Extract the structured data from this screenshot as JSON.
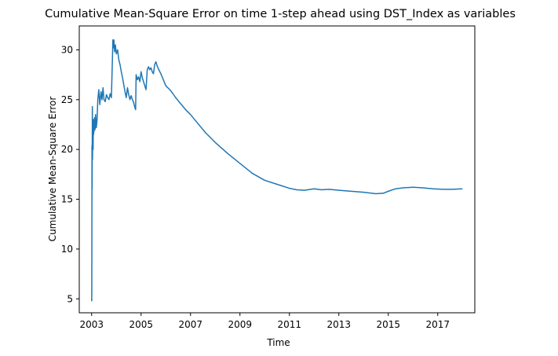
{
  "chart_data": {
    "type": "line",
    "title": "Cumulative Mean-Square Error on time 1-step ahead using DST_Index as variables",
    "xlabel": "Time",
    "ylabel": "Cumulative Mean-Square Error",
    "xlim": [
      2002.5,
      2018.5
    ],
    "ylim": [
      3.6,
      32.4
    ],
    "xticks": [
      2003,
      2005,
      2007,
      2009,
      2011,
      2013,
      2015,
      2017
    ],
    "yticks": [
      5,
      10,
      15,
      20,
      25,
      30
    ],
    "grid": false,
    "legend": "none",
    "series": [
      {
        "color": "#1f77b4",
        "x": [
          2003.0,
          2003.005,
          2003.01,
          2003.015,
          2003.02,
          2003.03,
          2003.035,
          2003.045,
          2003.06,
          2003.07,
          2003.08,
          2003.09,
          2003.1,
          2003.12,
          2003.14,
          2003.16,
          2003.19,
          2003.22,
          2003.25,
          2003.29,
          2003.33,
          2003.38,
          2003.42,
          2003.46,
          2003.5,
          2003.55,
          2003.6,
          2003.65,
          2003.7,
          2003.75,
          2003.8,
          2003.84,
          2003.86,
          2003.88,
          2003.9,
          2003.93,
          2003.96,
          2004.0,
          2004.05,
          2004.1,
          2004.15,
          2004.2,
          2004.25,
          2004.3,
          2004.35,
          2004.4,
          2004.45,
          2004.5,
          2004.55,
          2004.6,
          2004.65,
          2004.7,
          2004.75,
          2004.78,
          2004.8,
          2004.85,
          2004.9,
          2004.95,
          2005.0,
          2005.05,
          2005.1,
          2005.15,
          2005.2,
          2005.25,
          2005.3,
          2005.35,
          2005.4,
          2005.45,
          2005.5,
          2005.55,
          2005.6,
          2005.65,
          2005.7,
          2005.8,
          2005.9,
          2006.0,
          2006.2,
          2006.4,
          2006.6,
          2006.8,
          2007.0,
          2007.3,
          2007.6,
          2008.0,
          2008.5,
          2009.0,
          2009.5,
          2010.0,
          2010.5,
          2011.0,
          2011.3,
          2011.6,
          2012.0,
          2012.3,
          2012.6,
          2013.0,
          2013.5,
          2014.0,
          2014.5,
          2014.8,
          2015.0,
          2015.3,
          2015.6,
          2016.0,
          2016.4,
          2016.8,
          2017.2,
          2017.6,
          2018.0
        ],
        "y": [
          5.0,
          4.8,
          10.3,
          20.4,
          16.0,
          24.3,
          19.0,
          22.0,
          20.0,
          23.0,
          21.5,
          22.8,
          21.8,
          23.2,
          22.0,
          23.5,
          22.2,
          23.0,
          25.0,
          26.0,
          24.5,
          25.8,
          25.0,
          26.2,
          25.0,
          24.8,
          25.5,
          25.2,
          25.0,
          25.6,
          25.2,
          29.0,
          31.0,
          30.2,
          31.0,
          29.8,
          30.5,
          29.6,
          30.0,
          29.0,
          28.5,
          27.8,
          27.2,
          26.5,
          25.8,
          25.2,
          26.2,
          25.5,
          25.0,
          25.4,
          25.0,
          24.7,
          24.2,
          24.0,
          27.5,
          27.0,
          27.3,
          26.8,
          27.8,
          27.2,
          26.8,
          26.4,
          26.0,
          28.0,
          28.3,
          28.0,
          28.2,
          27.8,
          27.6,
          28.5,
          28.8,
          28.4,
          28.1,
          27.6,
          27.0,
          26.4,
          25.9,
          25.2,
          24.6,
          24.0,
          23.5,
          22.6,
          21.7,
          20.7,
          19.6,
          18.6,
          17.6,
          16.9,
          16.5,
          16.1,
          15.95,
          15.9,
          16.05,
          15.95,
          16.0,
          15.9,
          15.8,
          15.7,
          15.55,
          15.6,
          15.8,
          16.05,
          16.15,
          16.2,
          16.15,
          16.05,
          16.0,
          16.0,
          16.05
        ]
      }
    ]
  }
}
